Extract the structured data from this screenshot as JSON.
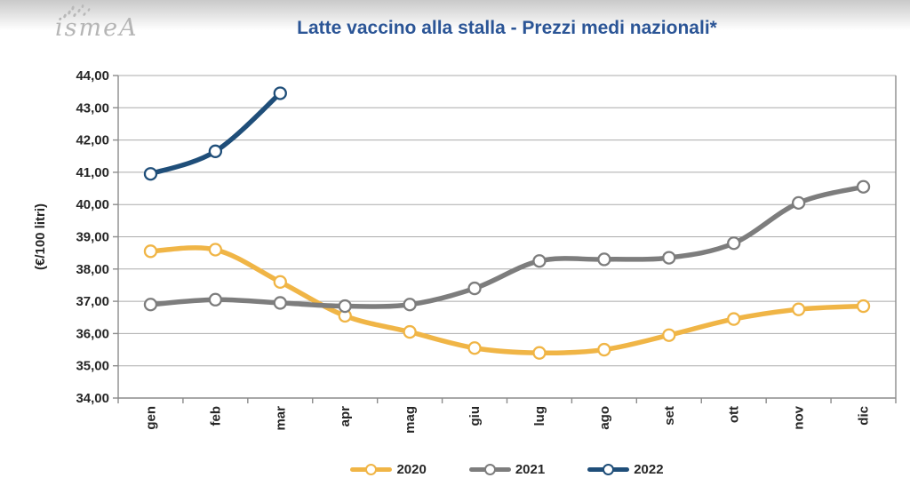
{
  "header": {
    "logo_text": "ismeA",
    "title": "Latte vaccino alla stalla - Prezzi medi nazionali*"
  },
  "colors": {
    "title_blue": "#2b5596",
    "series_2020": "#f0b546",
    "series_2021": "#7d7d7d",
    "series_2022": "#1f4e79",
    "gridline": "#ababab",
    "axis": "#8c8c8c",
    "tick_text": "#262626",
    "logo_gray": "#b5b5b5"
  },
  "chart_data": {
    "type": "line",
    "title": "Latte vaccino alla stalla - Prezzi medi nazionali*",
    "xlabel": "",
    "ylabel": "(€/100 litri)",
    "ylim": [
      34,
      44
    ],
    "ytick_step": 1,
    "decimal_separator": ",",
    "grid": true,
    "legend_position": "bottom",
    "line_style": "smooth",
    "marker": "open-circle",
    "categories": [
      "gen",
      "feb",
      "mar",
      "apr",
      "mag",
      "giu",
      "lug",
      "ago",
      "set",
      "ott",
      "nov",
      "dic"
    ],
    "series": [
      {
        "name": "2020",
        "color": "#f0b546",
        "values": [
          38.55,
          38.6,
          37.6,
          36.55,
          36.05,
          35.55,
          35.4,
          35.5,
          35.95,
          36.45,
          36.75,
          36.85
        ]
      },
      {
        "name": "2021",
        "color": "#7d7d7d",
        "values": [
          36.9,
          37.05,
          36.95,
          36.85,
          36.9,
          37.4,
          38.25,
          38.3,
          38.35,
          38.8,
          40.05,
          40.55
        ]
      },
      {
        "name": "2022",
        "color": "#1f4e79",
        "values": [
          40.95,
          41.65,
          43.45
        ]
      }
    ]
  }
}
